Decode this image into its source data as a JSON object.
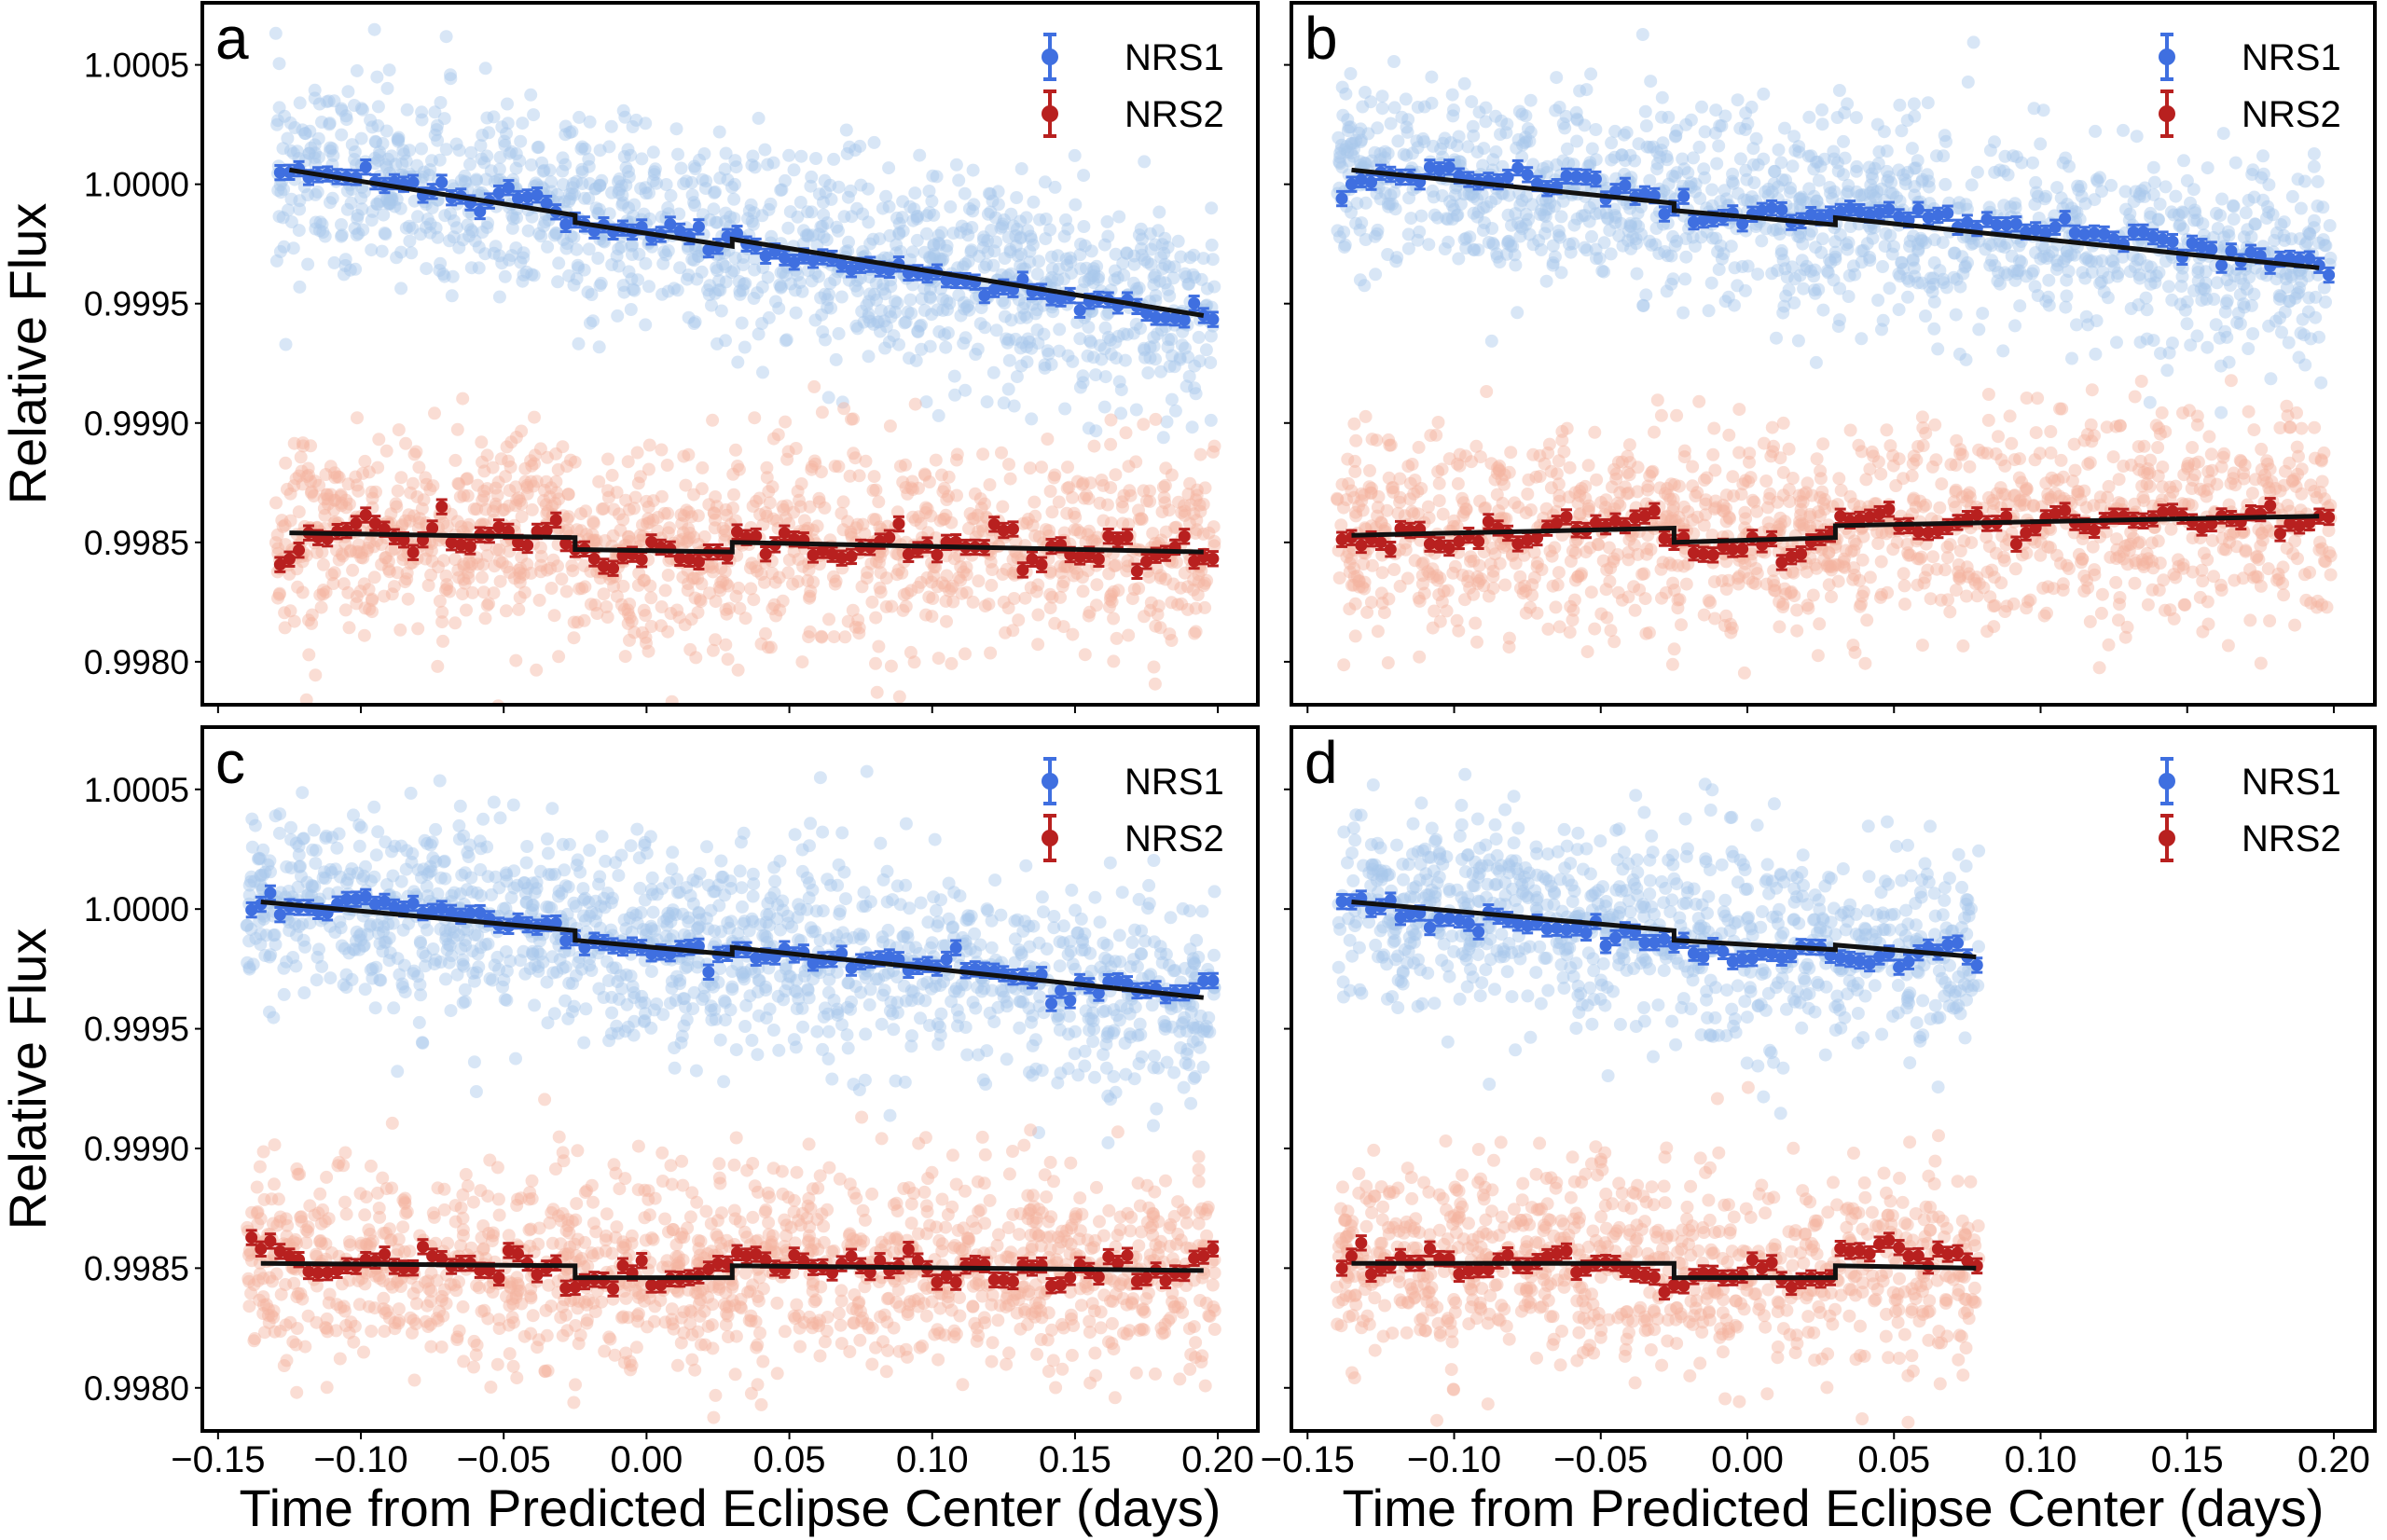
{
  "chart_data": [
    {
      "panel_label": "a",
      "type": "scatter",
      "xlim": [
        -0.1555,
        0.214
      ],
      "ylim": [
        0.99782,
        1.00076
      ],
      "xticks": [
        "-0.15",
        "-0.10",
        "-0.05",
        "0.00",
        "0.05",
        "0.10",
        "0.15",
        "0.20"
      ],
      "yticks": [
        "1.0005",
        "1.0000",
        "0.9995",
        "0.9990",
        "0.9985",
        "0.9980"
      ],
      "show_xticklabels": false,
      "show_yticklabels": true,
      "ylabel": "Relative Flux",
      "xlabel": "",
      "legend": "top-right",
      "x": [
        -0.125,
        -0.115,
        -0.105,
        -0.095,
        -0.085,
        -0.075,
        -0.065,
        -0.055,
        -0.045,
        -0.035,
        -0.025,
        -0.015,
        -0.005,
        0.005,
        0.015,
        0.025,
        0.035,
        0.045,
        0.055,
        0.065,
        0.075,
        0.085,
        0.095,
        0.105,
        0.115,
        0.125,
        0.135,
        0.145,
        0.155,
        0.165,
        0.175,
        0.185,
        0.195
      ],
      "series": [
        {
          "name": "NRS1",
          "color": "#3f6fe0",
          "raw_color": "#a9c8ec",
          "binned": [
            1.00005,
            1.00004,
            1.00003,
            1.00001,
            1.0,
            0.99997,
            0.99995,
            0.99993,
            0.99994,
            0.99992,
            0.99985,
            0.99983,
            0.9998,
            0.99979,
            0.99978,
            0.99974,
            0.99975,
            0.99972,
            0.9997,
            0.99969,
            0.99966,
            0.99964,
            0.99963,
            0.9996,
            0.99959,
            0.99957,
            0.99955,
            0.99952,
            0.99951,
            0.99949,
            0.99946,
            0.99944,
            0.99945
          ],
          "model": [
            [
              -0.125,
              1.00006
            ],
            [
              -0.025,
              0.99987
            ],
            [
              -0.025,
              0.99984
            ],
            [
              0.03,
              0.99974
            ],
            [
              0.03,
              0.99977
            ],
            [
              0.195,
              0.99945
            ]
          ]
        },
        {
          "name": "NRS2",
          "color": "#b8201f",
          "raw_color": "#f3b4a0",
          "binned": [
            0.99843,
            0.99852,
            0.99855,
            0.99858,
            0.99851,
            0.99856,
            0.99849,
            0.99853,
            0.9985,
            0.99855,
            0.99847,
            0.9984,
            0.99845,
            0.99848,
            0.99843,
            0.99846,
            0.99852,
            0.99849,
            0.99851,
            0.99845,
            0.99848,
            0.99852,
            0.99847,
            0.9985,
            0.99848,
            0.99855,
            0.99843,
            0.99849,
            0.99845,
            0.99851,
            0.99842,
            0.99848,
            0.99844
          ],
          "model": [
            [
              -0.125,
              0.99854
            ],
            [
              -0.025,
              0.99852
            ],
            [
              -0.025,
              0.99847
            ],
            [
              0.03,
              0.99846
            ],
            [
              0.03,
              0.9985
            ],
            [
              0.195,
              0.99846
            ]
          ]
        }
      ]
    },
    {
      "panel_label": "b",
      "type": "scatter",
      "xlim": [
        -0.1555,
        0.214
      ],
      "ylim": [
        0.99782,
        1.00076
      ],
      "xticks": [
        "-0.15",
        "-0.10",
        "-0.05",
        "0.00",
        "0.05",
        "0.10",
        "0.15",
        "0.20"
      ],
      "yticks": [
        "1.0005",
        "1.0000",
        "0.9995",
        "0.9990",
        "0.9985",
        "0.9980"
      ],
      "show_xticklabels": false,
      "show_yticklabels": false,
      "ylabel": "",
      "xlabel": "",
      "legend": "top-right",
      "x": [
        -0.135,
        -0.125,
        -0.115,
        -0.105,
        -0.095,
        -0.085,
        -0.075,
        -0.065,
        -0.055,
        -0.045,
        -0.035,
        -0.025,
        -0.015,
        -0.005,
        0.005,
        0.015,
        0.025,
        0.035,
        0.045,
        0.055,
        0.065,
        0.075,
        0.085,
        0.095,
        0.105,
        0.115,
        0.125,
        0.135,
        0.145,
        0.155,
        0.165,
        0.175,
        0.185,
        0.195
      ],
      "series": [
        {
          "name": "NRS1",
          "color": "#3f6fe0",
          "raw_color": "#a9c8ec",
          "binned": [
            1.0,
            1.00005,
            1.00003,
            1.00006,
            1.00002,
            1.00001,
            1.00004,
            0.99999,
            1.00003,
            0.99997,
            0.99996,
            0.9999,
            0.99985,
            0.99988,
            0.99989,
            0.99984,
            0.99986,
            0.9999,
            0.99988,
            0.99985,
            0.99987,
            0.99984,
            0.99983,
            0.9998,
            0.99982,
            0.99979,
            0.99977,
            0.9998,
            0.99976,
            0.99974,
            0.99972,
            0.9997,
            0.99969,
            0.99966
          ],
          "model": [
            [
              -0.135,
              1.00006
            ],
            [
              -0.025,
              0.99992
            ],
            [
              -0.025,
              0.99989
            ],
            [
              0.03,
              0.99983
            ],
            [
              0.03,
              0.99986
            ],
            [
              0.195,
              0.99965
            ]
          ]
        },
        {
          "name": "NRS2",
          "color": "#b8201f",
          "raw_color": "#f3b4a0",
          "binned": [
            0.99852,
            0.9985,
            0.99855,
            0.99849,
            0.99853,
            0.99856,
            0.99851,
            0.99858,
            0.99855,
            0.99859,
            0.99861,
            0.9985,
            0.99845,
            0.99847,
            0.99849,
            0.99844,
            0.99852,
            0.99859,
            0.99862,
            0.99857,
            0.99855,
            0.9986,
            0.99858,
            0.99854,
            0.99862,
            0.99857,
            0.99861,
            0.99859,
            0.99863,
            0.99856,
            0.9986,
            0.99862,
            0.99858,
            0.99861
          ],
          "model": [
            [
              -0.135,
              0.99853
            ],
            [
              -0.025,
              0.99856
            ],
            [
              -0.025,
              0.9985
            ],
            [
              0.03,
              0.99852
            ],
            [
              0.03,
              0.99857
            ],
            [
              0.195,
              0.99861
            ]
          ]
        }
      ]
    },
    {
      "panel_label": "c",
      "type": "scatter",
      "xlim": [
        -0.1555,
        0.214
      ],
      "ylim": [
        0.99782,
        1.00076
      ],
      "xticks": [
        "-0.15",
        "-0.10",
        "-0.05",
        "0.00",
        "0.05",
        "0.10",
        "0.15",
        "0.20"
      ],
      "yticks": [
        "1.0005",
        "1.0000",
        "0.9995",
        "0.9990",
        "0.9985",
        "0.9980"
      ],
      "show_xticklabels": true,
      "show_yticklabels": true,
      "ylabel": "Relative Flux",
      "xlabel": "Time from Predicted Eclipse Center (days)",
      "legend": "top-right",
      "x": [
        -0.135,
        -0.125,
        -0.115,
        -0.105,
        -0.095,
        -0.085,
        -0.075,
        -0.065,
        -0.055,
        -0.045,
        -0.035,
        -0.025,
        -0.015,
        -0.005,
        0.005,
        0.015,
        0.025,
        0.035,
        0.045,
        0.055,
        0.065,
        0.075,
        0.085,
        0.095,
        0.105,
        0.115,
        0.125,
        0.135,
        0.145,
        0.155,
        0.165,
        0.175,
        0.185,
        0.195
      ],
      "series": [
        {
          "name": "NRS1",
          "color": "#3f6fe0",
          "raw_color": "#a9c8ec",
          "binned": [
            1.00002,
            1.00001,
            0.99999,
            1.00004,
            1.00002,
            1.0,
            0.99999,
            0.99997,
            0.99996,
            0.99995,
            0.99994,
            0.99988,
            0.99986,
            0.99985,
            0.99982,
            0.99984,
            0.99981,
            0.99983,
            0.9998,
            0.99982,
            0.99979,
            0.99978,
            0.9998,
            0.99976,
            0.99979,
            0.99975,
            0.99973,
            0.9997,
            0.99966,
            0.99968,
            0.9997,
            0.99966,
            0.99965,
            0.9997
          ],
          "model": [
            [
              -0.135,
              1.00003
            ],
            [
              -0.025,
              0.99991
            ],
            [
              -0.025,
              0.99987
            ],
            [
              0.03,
              0.99981
            ],
            [
              0.03,
              0.99984
            ],
            [
              0.195,
              0.99963
            ]
          ]
        },
        {
          "name": "NRS2",
          "color": "#b8201f",
          "raw_color": "#f3b4a0",
          "binned": [
            0.99858,
            0.99855,
            0.99848,
            0.99851,
            0.99853,
            0.9985,
            0.99855,
            0.99852,
            0.99849,
            0.99856,
            0.9985,
            0.99842,
            0.99845,
            0.99848,
            0.99843,
            0.99846,
            0.99852,
            0.99855,
            0.9985,
            0.99853,
            0.99848,
            0.99851,
            0.99849,
            0.99853,
            0.99847,
            0.99852,
            0.99845,
            0.9985,
            0.99843,
            0.99849,
            0.99852,
            0.99846,
            0.99848,
            0.99855
          ],
          "model": [
            [
              -0.135,
              0.99852
            ],
            [
              -0.025,
              0.99851
            ],
            [
              -0.025,
              0.99846
            ],
            [
              0.03,
              0.99846
            ],
            [
              0.03,
              0.99851
            ],
            [
              0.195,
              0.99849
            ]
          ]
        }
      ]
    },
    {
      "panel_label": "d",
      "type": "scatter",
      "xlim": [
        -0.1555,
        0.214
      ],
      "ylim": [
        0.99782,
        1.00076
      ],
      "xticks": [
        "-0.15",
        "-0.10",
        "-0.05",
        "0.00",
        "0.05",
        "0.10",
        "0.15",
        "0.20"
      ],
      "yticks": [
        "1.0005",
        "1.0000",
        "0.9995",
        "0.9990",
        "0.9985",
        "0.9980"
      ],
      "show_xticklabels": true,
      "show_yticklabels": false,
      "ylabel": "",
      "xlabel": "Time from Predicted Eclipse Center (days)",
      "legend": "top-right",
      "x": [
        -0.135,
        -0.125,
        -0.115,
        -0.105,
        -0.095,
        -0.085,
        -0.075,
        -0.065,
        -0.055,
        -0.045,
        -0.035,
        -0.025,
        -0.015,
        -0.005,
        0.005,
        0.015,
        0.025,
        0.035,
        0.045,
        0.055,
        0.065,
        0.075
      ],
      "series": [
        {
          "name": "NRS1",
          "color": "#3f6fe0",
          "raw_color": "#a9c8ec",
          "binned": [
            1.00003,
            1.00001,
            0.99998,
            0.99996,
            0.99994,
            0.99997,
            0.99993,
            0.99992,
            0.9999,
            0.99988,
            0.99986,
            0.99985,
            0.9998,
            0.99978,
            0.99982,
            0.99981,
            0.99984,
            0.99979,
            0.9998,
            0.99978,
            0.99982,
            0.9998
          ],
          "model": [
            [
              -0.135,
              1.00003
            ],
            [
              -0.025,
              0.99991
            ],
            [
              -0.025,
              0.99987
            ],
            [
              0.03,
              0.99983
            ],
            [
              0.03,
              0.99985
            ],
            [
              0.078,
              0.9998
            ]
          ]
        },
        {
          "name": "NRS2",
          "color": "#b8201f",
          "raw_color": "#f3b4a0",
          "binned": [
            0.99855,
            0.9985,
            0.99852,
            0.99854,
            0.99849,
            0.99853,
            0.99851,
            0.99856,
            0.9985,
            0.99852,
            0.99847,
            0.99843,
            0.99848,
            0.99846,
            0.9985,
            0.99842,
            0.99845,
            0.99857,
            0.9986,
            0.99855,
            0.99858,
            0.99853
          ],
          "model": [
            [
              -0.135,
              0.99852
            ],
            [
              -0.025,
              0.99852
            ],
            [
              -0.025,
              0.99846
            ],
            [
              0.03,
              0.99846
            ],
            [
              0.03,
              0.99851
            ],
            [
              0.078,
              0.9985
            ]
          ]
        }
      ]
    }
  ]
}
